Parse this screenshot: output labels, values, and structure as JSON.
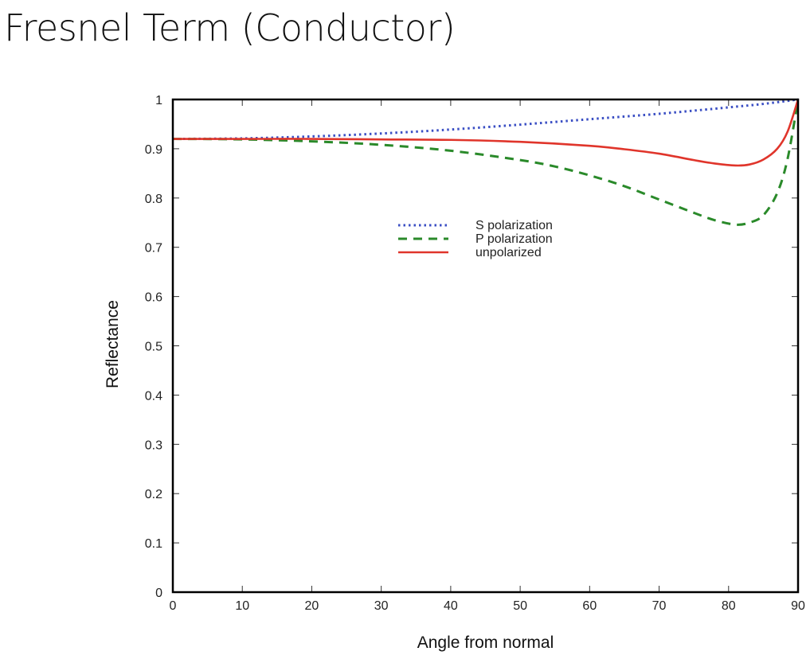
{
  "title": "Fresnel Term (Conductor)",
  "chart_data": {
    "type": "line",
    "title": "Fresnel Term (Conductor)",
    "xlabel": "Angle from normal",
    "ylabel": "Reflectance",
    "xlim": [
      0,
      90
    ],
    "ylim": [
      0,
      1
    ],
    "xticks": [
      0,
      10,
      20,
      30,
      40,
      50,
      60,
      70,
      80,
      90
    ],
    "yticks": [
      0,
      0.1,
      0.2,
      0.3,
      0.4,
      0.5,
      0.6,
      0.7,
      0.8,
      0.9,
      1
    ],
    "ytick_labels": [
      "0",
      "0.1",
      "0.2",
      "0.3",
      "0.4",
      "0.5",
      "0.6",
      "0.7",
      "0.8",
      "0.9",
      "1"
    ],
    "grid": false,
    "legend_position": "center-top",
    "series": [
      {
        "name": "S polarization",
        "style": "dotted",
        "color": "#3b4fc4",
        "x": [
          0,
          10,
          20,
          30,
          40,
          50,
          60,
          70,
          80,
          85,
          90
        ],
        "y": [
          0.92,
          0.921,
          0.925,
          0.931,
          0.939,
          0.949,
          0.96,
          0.971,
          0.984,
          0.991,
          1.0
        ]
      },
      {
        "name": "P polarization",
        "style": "dashed",
        "color": "#2a8a2a",
        "x": [
          0,
          10,
          20,
          30,
          40,
          50,
          55,
          60,
          65,
          70,
          75,
          78,
          81,
          83,
          85,
          87,
          88.5,
          90
        ],
        "y": [
          0.92,
          0.919,
          0.915,
          0.908,
          0.896,
          0.877,
          0.864,
          0.846,
          0.824,
          0.797,
          0.77,
          0.755,
          0.746,
          0.75,
          0.765,
          0.81,
          0.88,
          1.0
        ]
      },
      {
        "name": "unpolarized",
        "style": "solid",
        "color": "#e0352b",
        "x": [
          0,
          10,
          20,
          30,
          40,
          50,
          60,
          65,
          70,
          75,
          78,
          81,
          83,
          85,
          87,
          88.5,
          90
        ],
        "y": [
          0.92,
          0.92,
          0.92,
          0.919,
          0.918,
          0.914,
          0.906,
          0.899,
          0.89,
          0.877,
          0.87,
          0.866,
          0.868,
          0.878,
          0.9,
          0.935,
          1.0
        ]
      }
    ]
  }
}
